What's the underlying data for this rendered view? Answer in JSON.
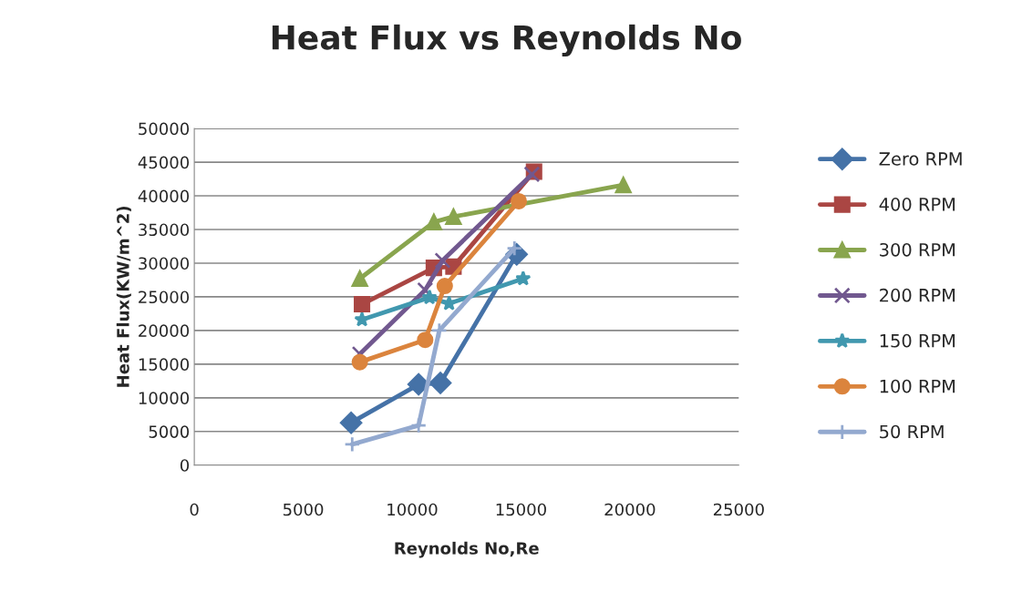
{
  "chart_data": {
    "type": "line",
    "title": "Heat Flux vs Reynolds No",
    "xlabel": "Reynolds No,Re",
    "ylabel": "Heat Flux(KW/m^2)",
    "xlim": [
      0,
      25000
    ],
    "xticks": [
      0,
      5000,
      10000,
      15000,
      20000,
      25000
    ],
    "ylim": [
      0,
      50000
    ],
    "yticks": [
      0,
      5000,
      10000,
      15000,
      20000,
      25000,
      30000,
      35000,
      40000,
      45000,
      50000
    ],
    "grid": "y",
    "legend": "right",
    "series": [
      {
        "name": "Zero RPM",
        "color": "#4572a7",
        "marker": "diamond",
        "x": [
          7200,
          10300,
          11300,
          14800
        ],
        "values": [
          6300,
          12000,
          12200,
          31300
        ]
      },
      {
        "name": "400 RPM",
        "color": "#aa4643",
        "marker": "square",
        "x": [
          7700,
          11000,
          11900,
          15600
        ],
        "values": [
          23900,
          29300,
          29500,
          43600
        ]
      },
      {
        "name": "300 RPM",
        "color": "#89a54e",
        "marker": "triangle",
        "x": [
          7600,
          11000,
          11900,
          19700
        ],
        "values": [
          27700,
          36100,
          36900,
          41600
        ]
      },
      {
        "name": "200 RPM",
        "color": "#71588f",
        "marker": "cross",
        "x": [
          7600,
          10600,
          11400,
          15500
        ],
        "values": [
          16500,
          26000,
          30400,
          43200
        ]
      },
      {
        "name": "150 RPM",
        "color": "#4198af",
        "marker": "star",
        "x": [
          7700,
          10800,
          11700,
          15100
        ],
        "values": [
          21600,
          24900,
          24000,
          27700
        ]
      },
      {
        "name": "100 RPM",
        "color": "#db843d",
        "marker": "circle",
        "x": [
          7600,
          10600,
          11500,
          14900
        ],
        "values": [
          15300,
          18600,
          26600,
          39200
        ]
      },
      {
        "name": "50 RPM",
        "color": "#93a9cf",
        "marker": "plus",
        "x": [
          7250,
          10300,
          11250,
          14700
        ],
        "values": [
          3100,
          5900,
          20000,
          32200
        ]
      }
    ]
  }
}
